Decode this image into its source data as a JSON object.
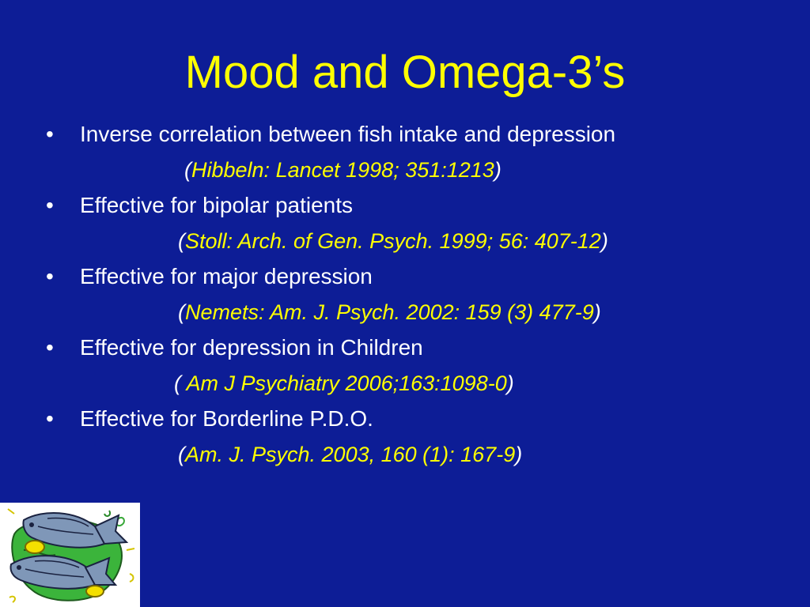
{
  "slide": {
    "title": "Mood and Omega-3’s",
    "bullet_symbol": "•",
    "items": [
      {
        "text": "Inverse correlation between fish intake and depression",
        "ref_open": "(",
        "ref": "Hibbeln: Lancet 1998; 351:1213",
        "ref_close": ")"
      },
      {
        "text": "Effective for bipolar patients",
        "ref_open": "(",
        "ref": "Stoll: Arch. of Gen. Psych. 1999; 56: 407-12",
        "ref_close": ")"
      },
      {
        "text": "Effective for major depression",
        "ref_open": "(",
        "ref": "Nemets: Am. J. Psych. 2002: 159 (3) 477-9",
        "ref_close": ")"
      },
      {
        "text": "Effective for depression in Children",
        "ref_open": "( ",
        "ref": "Am J Psychiatry 2006;163:1098-0",
        "ref_close": ")"
      },
      {
        "text": "Effective for Borderline P.D.O.",
        "ref_open": "(",
        "ref": "Am. J. Psych. 2003, 160 (1): 167-9",
        "ref_close": ")"
      }
    ]
  },
  "colors": {
    "background": "#0d1d96",
    "title": "#ffff00",
    "body_text": "#ffffff",
    "citation": "#ffff00"
  },
  "clipart": {
    "icon": "fish-clipart-icon"
  }
}
